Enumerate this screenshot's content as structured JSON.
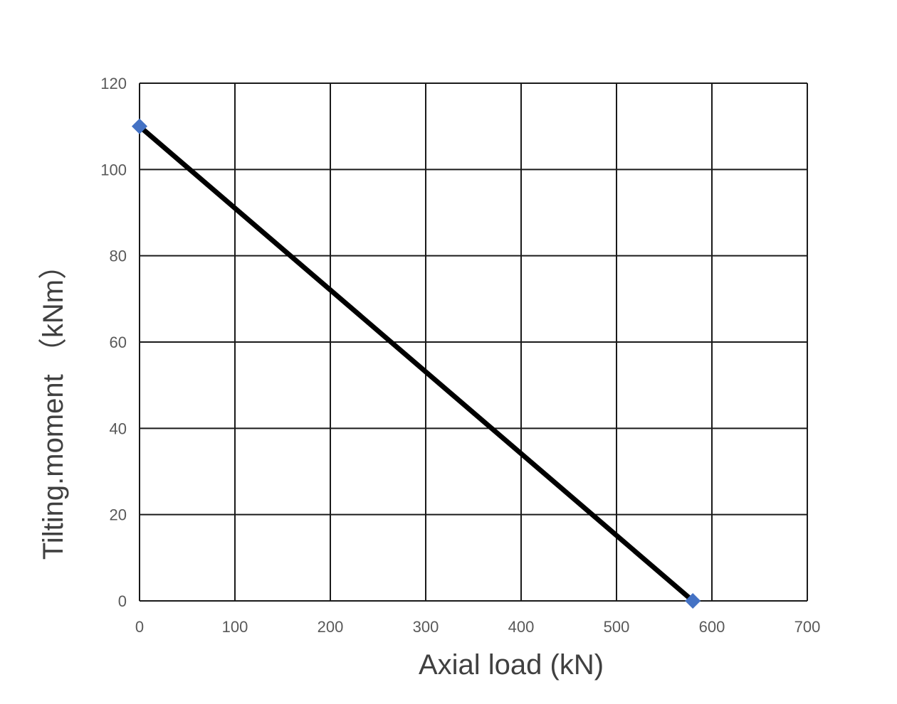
{
  "chart_data": {
    "type": "line",
    "title": "",
    "xlabel": "Axial load (kN)",
    "ylabel": "Tilting.moment （kNm）",
    "xlim": [
      0,
      700
    ],
    "ylim": [
      0,
      120
    ],
    "x_ticks": [
      "0",
      "100",
      "200",
      "300",
      "400",
      "500",
      "600",
      "700"
    ],
    "y_ticks": [
      "0",
      "20",
      "40",
      "60",
      "80",
      "100",
      "120"
    ],
    "grid": true,
    "legend": "none",
    "series": [
      {
        "x": [
          0,
          580
        ],
        "y": [
          110,
          0
        ],
        "line_color": "#000000",
        "marker": "diamond",
        "marker_color": "#4472C4"
      }
    ]
  }
}
